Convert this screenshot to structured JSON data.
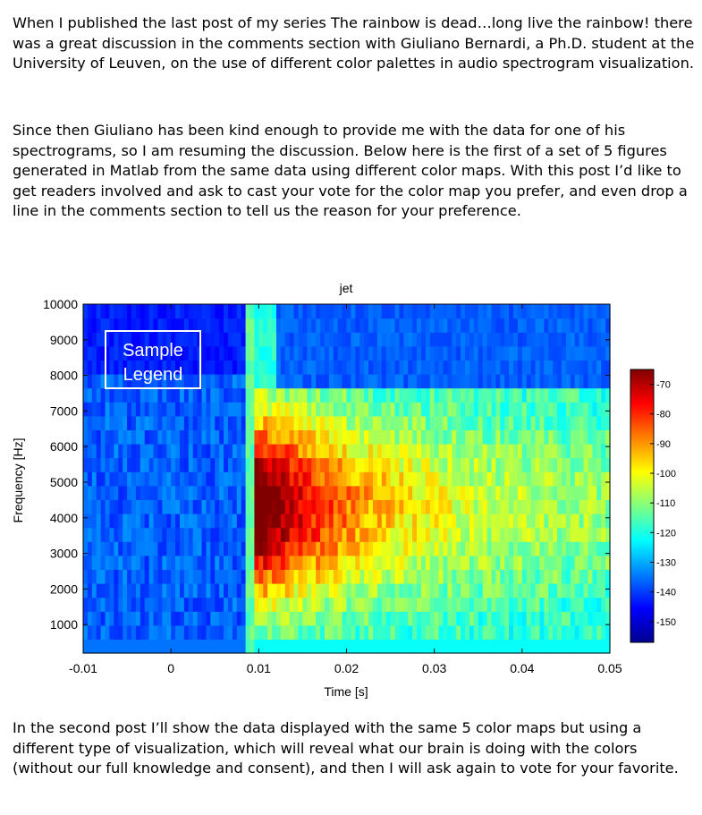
{
  "paragraphs": {
    "p1": "When I published the last post of my series The rainbow is dead…long live the rainbow! there was a great discussion in the comments section with Giuliano Bernardi, a Ph.D. student at the University of Leuven, on the use of different color palettes in audio spectrogram visualization.",
    "p2": "Since then Giuliano has been kind enough to provide me with the data for one of his spectrograms, so I am resuming the discussion. Below here is the first of a set of 5 figures generated in Matlab from the same data using different color maps. With this post I’d like to get readers involved and ask to cast your vote for the color map you prefer, and even drop a line in the comments section to tell us the reason for your preference.",
    "p3": "In the second post I’ll show the data displayed with the same 5 color maps but using a different type of visualization, which will reveal what our brain is doing with the colors (without our full knowledge and consent), and then I will ask again to vote for your favorite."
  },
  "chart_data": {
    "type": "heatmap",
    "title": "jet",
    "xlabel": "Time [s]",
    "ylabel": "Frequency [Hz]",
    "xlim": [
      -0.01,
      0.05
    ],
    "ylim": [
      200,
      10000
    ],
    "x_ticks": [
      -0.01,
      0,
      0.01,
      0.02,
      0.03,
      0.04,
      0.05
    ],
    "x_tick_labels": [
      "-0.01",
      "0",
      "0.01",
      "0.02",
      "0.03",
      "0.04",
      "0.05"
    ],
    "y_ticks": [
      1000,
      2000,
      3000,
      4000,
      5000,
      6000,
      7000,
      8000,
      9000,
      10000
    ],
    "y_tick_labels": [
      "1000",
      "2000",
      "3000",
      "4000",
      "5000",
      "6000",
      "7000",
      "8000",
      "9000",
      "10000"
    ],
    "colormap": "jet",
    "colorbar": {
      "ticks": [
        -70,
        -80,
        -90,
        -100,
        -110,
        -120,
        -130,
        -140,
        -150
      ],
      "tick_labels": [
        "-70",
        "-80",
        "-90",
        "-100",
        "-110",
        "-120",
        "-130",
        "-140",
        "-150"
      ],
      "range": [
        -157,
        -65
      ]
    },
    "annotation": {
      "line1": "Sample",
      "line2": "Legend"
    },
    "description_of_values": "Background noise near -140 dB; broadband onset at t≈0.009 s; strong energy (≈ -70 dB) from 2500–7000 Hz around t≈0.01 s decaying to ≈ -115 dB by 0.05 s; energy mostly below 7500 Hz after onset."
  }
}
